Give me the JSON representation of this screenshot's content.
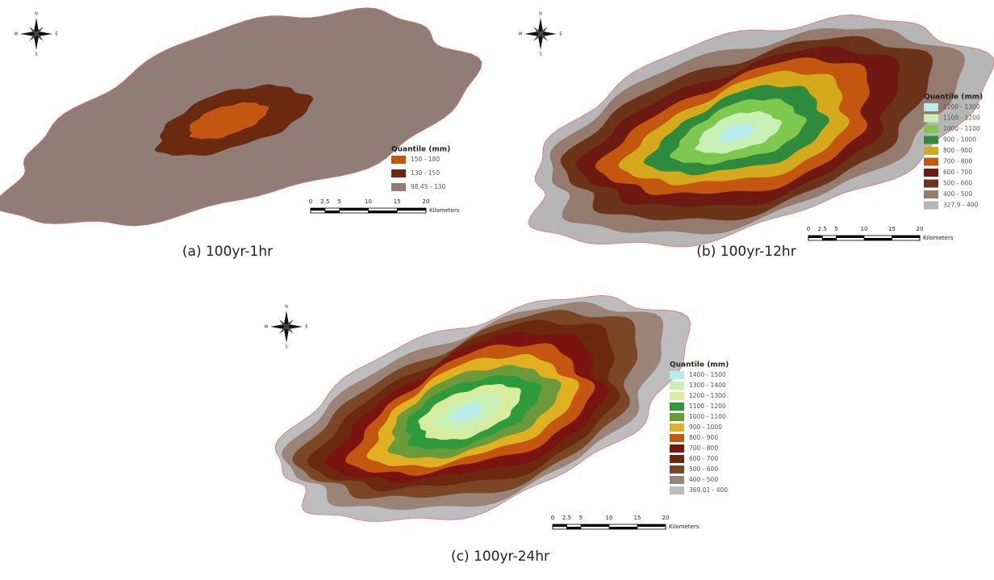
{
  "panels": [
    {
      "caption": "(a)  100yr-1hr",
      "compass": {
        "n": "N",
        "s": "S",
        "e": "E",
        "w": "W"
      },
      "legend": {
        "title": "Quantile (mm)",
        "items": [
          {
            "label": "150 - 180",
            "color": "#c4570f"
          },
          {
            "label": "130 - 150",
            "color": "#6b2a10"
          },
          {
            "label": "98.45 - 130",
            "color": "#8f7d76"
          }
        ]
      },
      "scale": {
        "ticks": [
          0,
          2.5,
          5,
          10,
          15,
          20
        ],
        "unit": "Kilometers"
      }
    },
    {
      "caption": "(b)  100yr-12hr",
      "compass": {
        "n": "N",
        "s": "S",
        "e": "E",
        "w": "W"
      },
      "legend": {
        "title": "Quantile (mm)",
        "items": [
          {
            "label": "1200 - 1300",
            "color": "#b8ecea"
          },
          {
            "label": "1100 - 1200",
            "color": "#c9f0b4"
          },
          {
            "label": "1000 - 1100",
            "color": "#7ec850"
          },
          {
            "label": "900 - 1000",
            "color": "#2e8a3c"
          },
          {
            "label": "800 - 900",
            "color": "#d4aa1c"
          },
          {
            "label": "700 - 800",
            "color": "#c4570f"
          },
          {
            "label": "600 - 700",
            "color": "#6e1a12"
          },
          {
            "label": "500 - 600",
            "color": "#6b3418"
          },
          {
            "label": "400 - 500",
            "color": "#957b6e"
          },
          {
            "label": "327.9 - 400",
            "color": "#b6b6b6"
          }
        ]
      },
      "scale": {
        "ticks": [
          0,
          2.5,
          5,
          10,
          15,
          20
        ],
        "unit": "Kilometers"
      }
    },
    {
      "caption": "(c)  100yr-24hr",
      "compass": {
        "n": "N",
        "s": "S",
        "e": "E",
        "w": "W"
      },
      "legend": {
        "title": "Quantile (mm)",
        "items": [
          {
            "label": "1400 - 1500",
            "color": "#b8ecea"
          },
          {
            "label": "1300 - 1400",
            "color": "#c9f0b4"
          },
          {
            "label": "1200 - 1300",
            "color": "#d8eca0"
          },
          {
            "label": "1100 - 1200",
            "color": "#2f9a3a"
          },
          {
            "label": "1000 - 1100",
            "color": "#6a9a3a"
          },
          {
            "label": "900 - 1000",
            "color": "#e0b020"
          },
          {
            "label": "800 - 900",
            "color": "#c4570f"
          },
          {
            "label": "700 - 800",
            "color": "#7a1410"
          },
          {
            "label": "600 - 700",
            "color": "#6b2a10"
          },
          {
            "label": "500 - 600",
            "color": "#7a4626"
          },
          {
            "label": "400 - 500",
            "color": "#9a8478"
          },
          {
            "label": "369.01 - 400",
            "color": "#bdbdbd"
          }
        ]
      },
      "scale": {
        "ticks": [
          0,
          2.5,
          5,
          10,
          15,
          20
        ],
        "unit": "Kilometers"
      }
    }
  ]
}
